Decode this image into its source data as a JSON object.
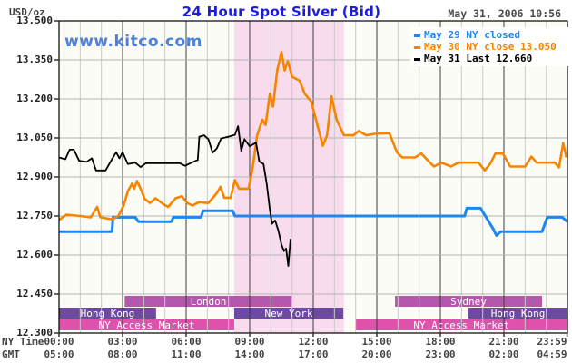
{
  "header": {
    "title": "24 Hour Spot Silver (Bid)",
    "datetime": "May 31, 2006 10:56",
    "unit_label": "USD/oz",
    "watermark": "www.kitco.com"
  },
  "legend": [
    {
      "label": "May 29 NY closed",
      "color": "#1e86f0"
    },
    {
      "label": "May 30 NY close 13.050",
      "color": "#f78400"
    },
    {
      "label": "May 31 Last 12.660",
      "color": "#000000"
    }
  ],
  "axis": {
    "ny_row_label": "NY Time",
    "gmt_row_label": "GMT",
    "time_ticks": [
      {
        "h": 0,
        "ny": "00:00",
        "gmt": "05:00"
      },
      {
        "h": 3,
        "ny": "03:00",
        "gmt": "08:00"
      },
      {
        "h": 6,
        "ny": "06:00",
        "gmt": "11:00"
      },
      {
        "h": 9,
        "ny": "09:00",
        "gmt": "14:00"
      },
      {
        "h": 12,
        "ny": "12:00",
        "gmt": "17:00"
      },
      {
        "h": 15,
        "ny": "15:00",
        "gmt": "20:00"
      },
      {
        "h": 18,
        "ny": "18:00",
        "gmt": "23:00"
      },
      {
        "h": 21,
        "ny": "21:00",
        "gmt": "02:00"
      },
      {
        "h": 23.983,
        "ny": "23:59",
        "gmt": "04:59"
      }
    ],
    "y_ticks": [
      {
        "v": 13.5,
        "label": "13.500"
      },
      {
        "v": 13.35,
        "label": "13.350"
      },
      {
        "v": 13.2,
        "label": "13.200"
      },
      {
        "v": 13.05,
        "label": "13.050"
      },
      {
        "v": 12.9,
        "label": "12.900"
      },
      {
        "v": 12.75,
        "label": "12.750"
      },
      {
        "v": 12.6,
        "label": "12.600"
      },
      {
        "v": 12.45,
        "label": "12.450"
      },
      {
        "v": 12.3,
        "label": "12.300"
      }
    ]
  },
  "chart_data": {
    "type": "line",
    "title": "24 Hour Spot Silver (Bid)",
    "xlabel": "NY Time (hours, 00:00-23:59)",
    "ylabel": "USD/oz",
    "xlim": [
      0,
      24
    ],
    "ylim": [
      12.3,
      13.5
    ],
    "y_step": 0.15,
    "grid": "hourly minor, 3-hour major verticals; horizontal at each 0.150",
    "legend_position": "top-right inside plot",
    "colors": {
      "plot_bg": "#fcfcf7",
      "highlight_pink": "#f8dcee",
      "grid_minor": "#c9c9c9",
      "grid_major": "#3c3c3c",
      "grid_horizontal": "#b4b4b4",
      "band_orchid": "#b558ad",
      "band_purple": "#6b4aa0",
      "band_pink": "#de52ac"
    },
    "highlight_regions": [
      {
        "name": "ny-session-highlight",
        "start": 8.27,
        "end": 13.45
      }
    ],
    "sessions": [
      {
        "label": "Hong Kong",
        "row": 1,
        "start": 0,
        "end": 4.58,
        "color": "#6b4aa0"
      },
      {
        "label": "London",
        "row": 0,
        "start": 3.1,
        "end": 11.0,
        "color": "#b558ad"
      },
      {
        "label": "New York",
        "row": 1,
        "start": 8.27,
        "end": 13.42,
        "color": "#6b4aa0"
      },
      {
        "label": "Sydney",
        "row": 0,
        "start": 15.86,
        "end": 22.8,
        "color": "#b558ad"
      },
      {
        "label": "Hong Kong",
        "row": 1,
        "start": 19.33,
        "end": 24,
        "color": "#6b4aa0"
      },
      {
        "label": "NY Access Market",
        "row": 2,
        "start": 0,
        "end": 8.27,
        "color": "#de52ac"
      },
      {
        "label": "NY Access Market",
        "row": 2,
        "start": 14.0,
        "end": 24,
        "color": "#de52ac"
      }
    ],
    "series": [
      {
        "name": "May 29 NY closed",
        "color": "#1e86f0",
        "width": 3,
        "points": [
          [
            0,
            12.69
          ],
          [
            2.5,
            12.69
          ],
          [
            2.55,
            12.745
          ],
          [
            3.6,
            12.745
          ],
          [
            3.75,
            12.728
          ],
          [
            5.3,
            12.728
          ],
          [
            5.4,
            12.745
          ],
          [
            6.7,
            12.745
          ],
          [
            6.8,
            12.77
          ],
          [
            8.2,
            12.77
          ],
          [
            8.3,
            12.75
          ],
          [
            19.15,
            12.75
          ],
          [
            19.25,
            12.78
          ],
          [
            19.9,
            12.78
          ],
          [
            20.5,
            12.7
          ],
          [
            20.65,
            12.675
          ],
          [
            20.85,
            12.69
          ],
          [
            22.8,
            12.69
          ],
          [
            23.05,
            12.745
          ],
          [
            23.75,
            12.745
          ],
          [
            24,
            12.728
          ]
        ]
      },
      {
        "name": "May 30 NY close 13.050",
        "color": "#f78400",
        "width": 2.6,
        "points": [
          [
            0,
            12.735
          ],
          [
            0.35,
            12.755
          ],
          [
            1.0,
            12.75
          ],
          [
            1.5,
            12.745
          ],
          [
            1.8,
            12.785
          ],
          [
            1.95,
            12.745
          ],
          [
            2.5,
            12.737
          ],
          [
            2.8,
            12.75
          ],
          [
            3.05,
            12.79
          ],
          [
            3.25,
            12.845
          ],
          [
            3.45,
            12.875
          ],
          [
            3.55,
            12.855
          ],
          [
            3.68,
            12.885
          ],
          [
            3.85,
            12.855
          ],
          [
            4.05,
            12.815
          ],
          [
            4.3,
            12.8
          ],
          [
            4.55,
            12.818
          ],
          [
            4.9,
            12.797
          ],
          [
            5.15,
            12.785
          ],
          [
            5.5,
            12.818
          ],
          [
            5.8,
            12.826
          ],
          [
            6.05,
            12.8
          ],
          [
            6.3,
            12.79
          ],
          [
            6.6,
            12.803
          ],
          [
            7.05,
            12.8
          ],
          [
            7.45,
            12.838
          ],
          [
            7.62,
            12.862
          ],
          [
            7.8,
            12.82
          ],
          [
            8.1,
            12.82
          ],
          [
            8.3,
            12.888
          ],
          [
            8.5,
            12.855
          ],
          [
            8.95,
            12.855
          ],
          [
            9.15,
            12.94
          ],
          [
            9.35,
            13.06
          ],
          [
            9.6,
            13.12
          ],
          [
            9.75,
            13.1
          ],
          [
            9.95,
            13.22
          ],
          [
            10.1,
            13.17
          ],
          [
            10.3,
            13.31
          ],
          [
            10.5,
            13.38
          ],
          [
            10.65,
            13.31
          ],
          [
            10.8,
            13.345
          ],
          [
            11.0,
            13.285
          ],
          [
            11.35,
            13.27
          ],
          [
            11.6,
            13.22
          ],
          [
            11.9,
            13.19
          ],
          [
            12.1,
            13.13
          ],
          [
            12.45,
            13.02
          ],
          [
            12.65,
            13.06
          ],
          [
            12.86,
            13.21
          ],
          [
            13.1,
            13.12
          ],
          [
            13.45,
            13.06
          ],
          [
            13.9,
            13.06
          ],
          [
            14.15,
            13.077
          ],
          [
            14.5,
            13.06
          ],
          [
            15.0,
            13.067
          ],
          [
            15.6,
            13.067
          ],
          [
            15.95,
            12.995
          ],
          [
            16.2,
            12.975
          ],
          [
            16.8,
            12.975
          ],
          [
            17.1,
            12.99
          ],
          [
            17.45,
            12.96
          ],
          [
            17.7,
            12.94
          ],
          [
            18.05,
            12.955
          ],
          [
            18.5,
            12.94
          ],
          [
            18.85,
            12.955
          ],
          [
            19.8,
            12.955
          ],
          [
            20.1,
            12.925
          ],
          [
            20.35,
            12.95
          ],
          [
            20.6,
            12.99
          ],
          [
            20.95,
            12.99
          ],
          [
            21.3,
            12.94
          ],
          [
            22.0,
            12.94
          ],
          [
            22.3,
            12.978
          ],
          [
            22.55,
            12.955
          ],
          [
            23.4,
            12.955
          ],
          [
            23.6,
            12.937
          ],
          [
            23.8,
            13.03
          ],
          [
            23.95,
            12.975
          ]
        ]
      },
      {
        "name": "May 31 Last 12.660",
        "color": "#000000",
        "width": 1.8,
        "points": [
          [
            0,
            12.975
          ],
          [
            0.3,
            12.968
          ],
          [
            0.5,
            13.005
          ],
          [
            0.7,
            13.005
          ],
          [
            0.95,
            12.962
          ],
          [
            1.3,
            12.958
          ],
          [
            1.55,
            12.972
          ],
          [
            1.75,
            12.925
          ],
          [
            2.2,
            12.925
          ],
          [
            2.5,
            12.968
          ],
          [
            2.7,
            12.995
          ],
          [
            2.85,
            12.972
          ],
          [
            3.0,
            12.995
          ],
          [
            3.25,
            12.95
          ],
          [
            3.6,
            12.955
          ],
          [
            3.85,
            12.938
          ],
          [
            4.1,
            12.953
          ],
          [
            5.7,
            12.953
          ],
          [
            5.95,
            12.943
          ],
          [
            6.2,
            12.953
          ],
          [
            6.45,
            12.962
          ],
          [
            6.55,
            12.965
          ],
          [
            6.62,
            13.055
          ],
          [
            6.85,
            13.06
          ],
          [
            7.05,
            13.045
          ],
          [
            7.25,
            12.993
          ],
          [
            7.45,
            13.01
          ],
          [
            7.65,
            13.048
          ],
          [
            8.0,
            13.055
          ],
          [
            8.3,
            13.062
          ],
          [
            8.45,
            13.095
          ],
          [
            8.6,
            13.0
          ],
          [
            8.75,
            13.045
          ],
          [
            9.0,
            13.018
          ],
          [
            9.3,
            13.032
          ],
          [
            9.45,
            12.96
          ],
          [
            9.65,
            12.95
          ],
          [
            9.8,
            12.875
          ],
          [
            9.95,
            12.775
          ],
          [
            10.05,
            12.72
          ],
          [
            10.2,
            12.733
          ],
          [
            10.35,
            12.695
          ],
          [
            10.5,
            12.64
          ],
          [
            10.62,
            12.615
          ],
          [
            10.72,
            12.625
          ],
          [
            10.82,
            12.558
          ],
          [
            10.93,
            12.662
          ]
        ]
      }
    ]
  }
}
